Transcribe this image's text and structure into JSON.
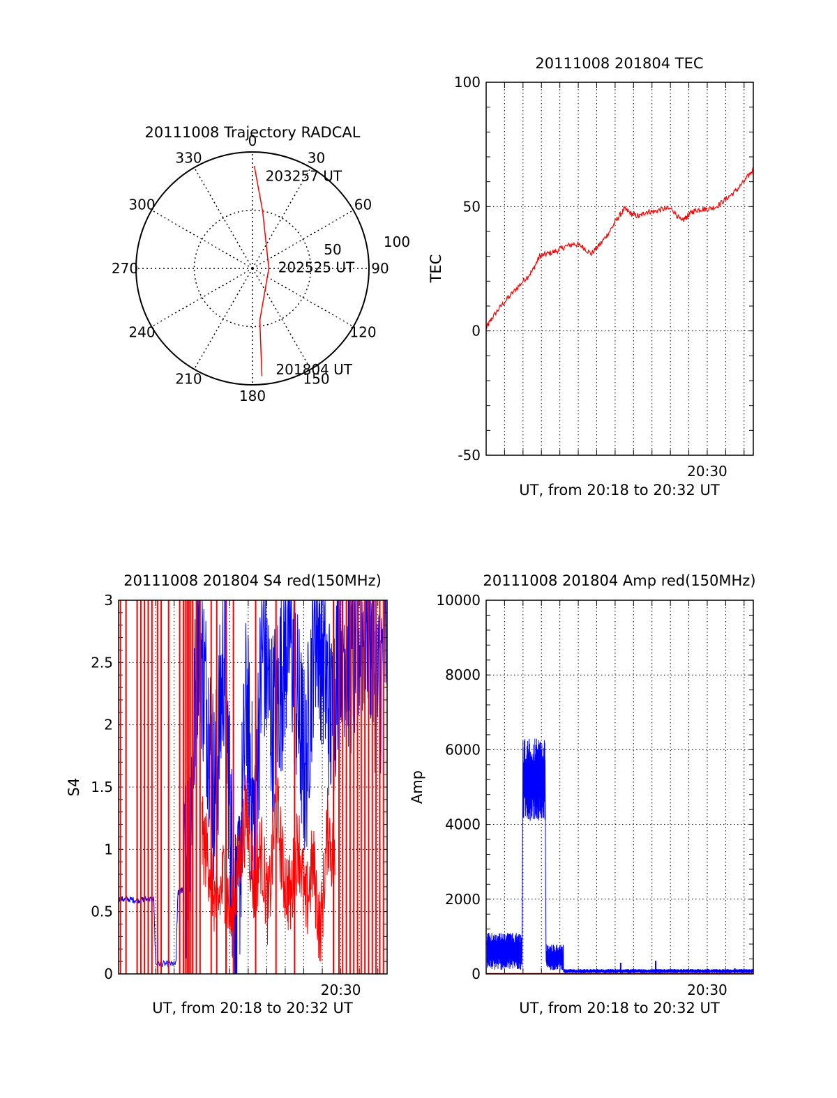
{
  "chart_data": [
    {
      "id": "trajectory",
      "type": "polar",
      "title": "20111008 Trajectory RADCAL",
      "angle_labels": [
        "0",
        "30",
        "60",
        "90",
        "120",
        "150",
        "180",
        "210",
        "240",
        "270",
        "300",
        "330"
      ],
      "radial_labels": [
        "50",
        "100"
      ],
      "rlim": [
        0,
        100
      ],
      "grid": true,
      "series": [
        {
          "color": "#ff0000",
          "points": [
            {
              "azimuth": 1,
              "elevation": 12
            },
            {
              "azimuth": 10,
              "elevation": 50
            },
            {
              "azimuth": 90,
              "elevation": 86
            },
            {
              "azimuth": 172,
              "elevation": 55
            },
            {
              "azimuth": 175,
              "elevation": 7
            }
          ]
        }
      ],
      "annotations": [
        {
          "text": "203257 UT",
          "azimuth": 8,
          "elevation": 20
        },
        {
          "text": "202525 UT",
          "azimuth": 88,
          "elevation": 78
        },
        {
          "text": "201804 UT",
          "azimuth": 167,
          "elevation": 11
        }
      ]
    },
    {
      "id": "tec",
      "type": "line",
      "title": "20111008 201804 TEC",
      "xlabel": "UT, from 20:18 to 20:32 UT",
      "ylabel": "TEC",
      "xlim": [
        0,
        14.5
      ],
      "ylim": [
        -50,
        100
      ],
      "yticks": [
        "100",
        "50",
        "0",
        "-50"
      ],
      "xtick_labels": [
        {
          "label": "20:30",
          "x": 12
        }
      ],
      "grid": true,
      "series": [
        {
          "color": "#ff0000",
          "x": [
            0,
            0.3,
            0.8,
            1.4,
            2.0,
            2.5,
            2.9,
            3.3,
            3.8,
            4.3,
            4.8,
            5.2,
            5.7,
            6.2,
            6.7,
            7.1,
            7.5,
            7.9,
            8.3,
            8.7,
            9.1,
            9.6,
            10.1,
            10.6,
            10.9,
            11.2,
            11.6,
            12.0,
            12.5,
            13.0,
            13.5,
            14.0,
            14.5
          ],
          "y": [
            1,
            5,
            10,
            15,
            20,
            24,
            30,
            31,
            32,
            34,
            35,
            34,
            31,
            35,
            40,
            45,
            49,
            47,
            46,
            48,
            48,
            49,
            49,
            44,
            46,
            48,
            49,
            49,
            50,
            53,
            56,
            60,
            65
          ]
        }
      ]
    },
    {
      "id": "s4",
      "type": "line",
      "title": "20111008 201804 S4 red(150MHz)",
      "xlabel": "UT, from 20:18 to 20:32 UT",
      "ylabel": "S4",
      "xlim": [
        0,
        14.5
      ],
      "ylim": [
        0,
        3
      ],
      "yticks": [
        "3",
        "2.5",
        "2",
        "1.5",
        "1",
        "0.5",
        "0"
      ],
      "xtick_labels": [
        {
          "label": "20:30",
          "x": 12
        }
      ],
      "grid": true,
      "series": [
        {
          "color": "#0000ff",
          "x": [
            0,
            0.5,
            1.0,
            1.5,
            1.9,
            2.0,
            2.6,
            3.1,
            3.2,
            3.4,
            3.5,
            3.9,
            4.3,
            4.8,
            5.2,
            5.7,
            6.1,
            6.4,
            6.9,
            7.3,
            7.8,
            8.3,
            8.8,
            9.2,
            9.7,
            10.1,
            10.6,
            11.0,
            11.5,
            12.0,
            12.5,
            13.0,
            13.5,
            14.0,
            14.5
          ],
          "y": [
            0.6,
            0.6,
            0.59,
            0.6,
            0.6,
            0.08,
            0.08,
            0.08,
            0.65,
            0.67,
            0.68,
            1.3,
            2.8,
            2.1,
            1.4,
            2.6,
            1.0,
            0.3,
            2.2,
            1.2,
            2.7,
            2.0,
            2.4,
            2.8,
            2.1,
            1.6,
            2.9,
            2.6,
            2.0,
            2.8,
            2.5,
            2.7,
            2.9,
            2.2,
            2.8
          ]
        },
        {
          "color": "#ff0000",
          "x": [
            4.5,
            4.9,
            5.3,
            5.7,
            6.1,
            6.5,
            6.9,
            7.3,
            7.7,
            8.1,
            8.5,
            8.9,
            9.3,
            9.7,
            10.1,
            10.5,
            10.9,
            11.3,
            11.7
          ],
          "y": [
            1.1,
            0.9,
            0.5,
            0.8,
            0.4,
            0.9,
            1.3,
            0.7,
            1.0,
            0.5,
            1.4,
            0.8,
            0.6,
            1.1,
            0.5,
            0.9,
            0.3,
            1.2,
            0.8
          ]
        }
      ],
      "red_spike_x": [
        0.1,
        0.4,
        1.0,
        1.2,
        1.4,
        1.6,
        1.8,
        2.1,
        2.3,
        2.7,
        3.3,
        3.5,
        3.6,
        3.7,
        3.8,
        3.9,
        4.0,
        4.2,
        4.4,
        5.0,
        5.3,
        5.8,
        6.2,
        7.4,
        8.5,
        9.5,
        11.6,
        11.9,
        12.1,
        12.3,
        12.5,
        12.7,
        12.9,
        13.1,
        13.3,
        13.5,
        13.7,
        13.9,
        14.1,
        14.3
      ]
    },
    {
      "id": "amp",
      "type": "line",
      "title": "20111008 201804 Amp red(150MHz)",
      "xlabel": "UT, from 20:18 to 20:32 UT",
      "ylabel": "Amp",
      "xlim": [
        0,
        14.5
      ],
      "ylim": [
        0,
        10000
      ],
      "yticks": [
        "10000",
        "8000",
        "6000",
        "4000",
        "2000",
        "0"
      ],
      "xtick_labels": [
        {
          "label": "20:30",
          "x": 12
        }
      ],
      "grid": true,
      "series": [
        {
          "color": "#0000ff",
          "segments": [
            {
              "x0": 0.05,
              "x1": 1.95,
              "low": 100,
              "high": 1100
            },
            {
              "x0": 2.0,
              "x1": 3.2,
              "low": 4100,
              "high": 6300
            },
            {
              "x0": 3.25,
              "x1": 4.2,
              "low": 100,
              "high": 800
            },
            {
              "x0": 4.2,
              "x1": 14.5,
              "low": 20,
              "high": 130
            }
          ],
          "spikes": [
            {
              "x": 7.3,
              "y": 300
            },
            {
              "x": 9.2,
              "y": 350
            },
            {
              "x": 13.5,
              "y": 150
            }
          ]
        },
        {
          "color": "#ff0000",
          "x": [
            0,
            14.5
          ],
          "y": [
            10,
            10
          ]
        }
      ]
    }
  ]
}
